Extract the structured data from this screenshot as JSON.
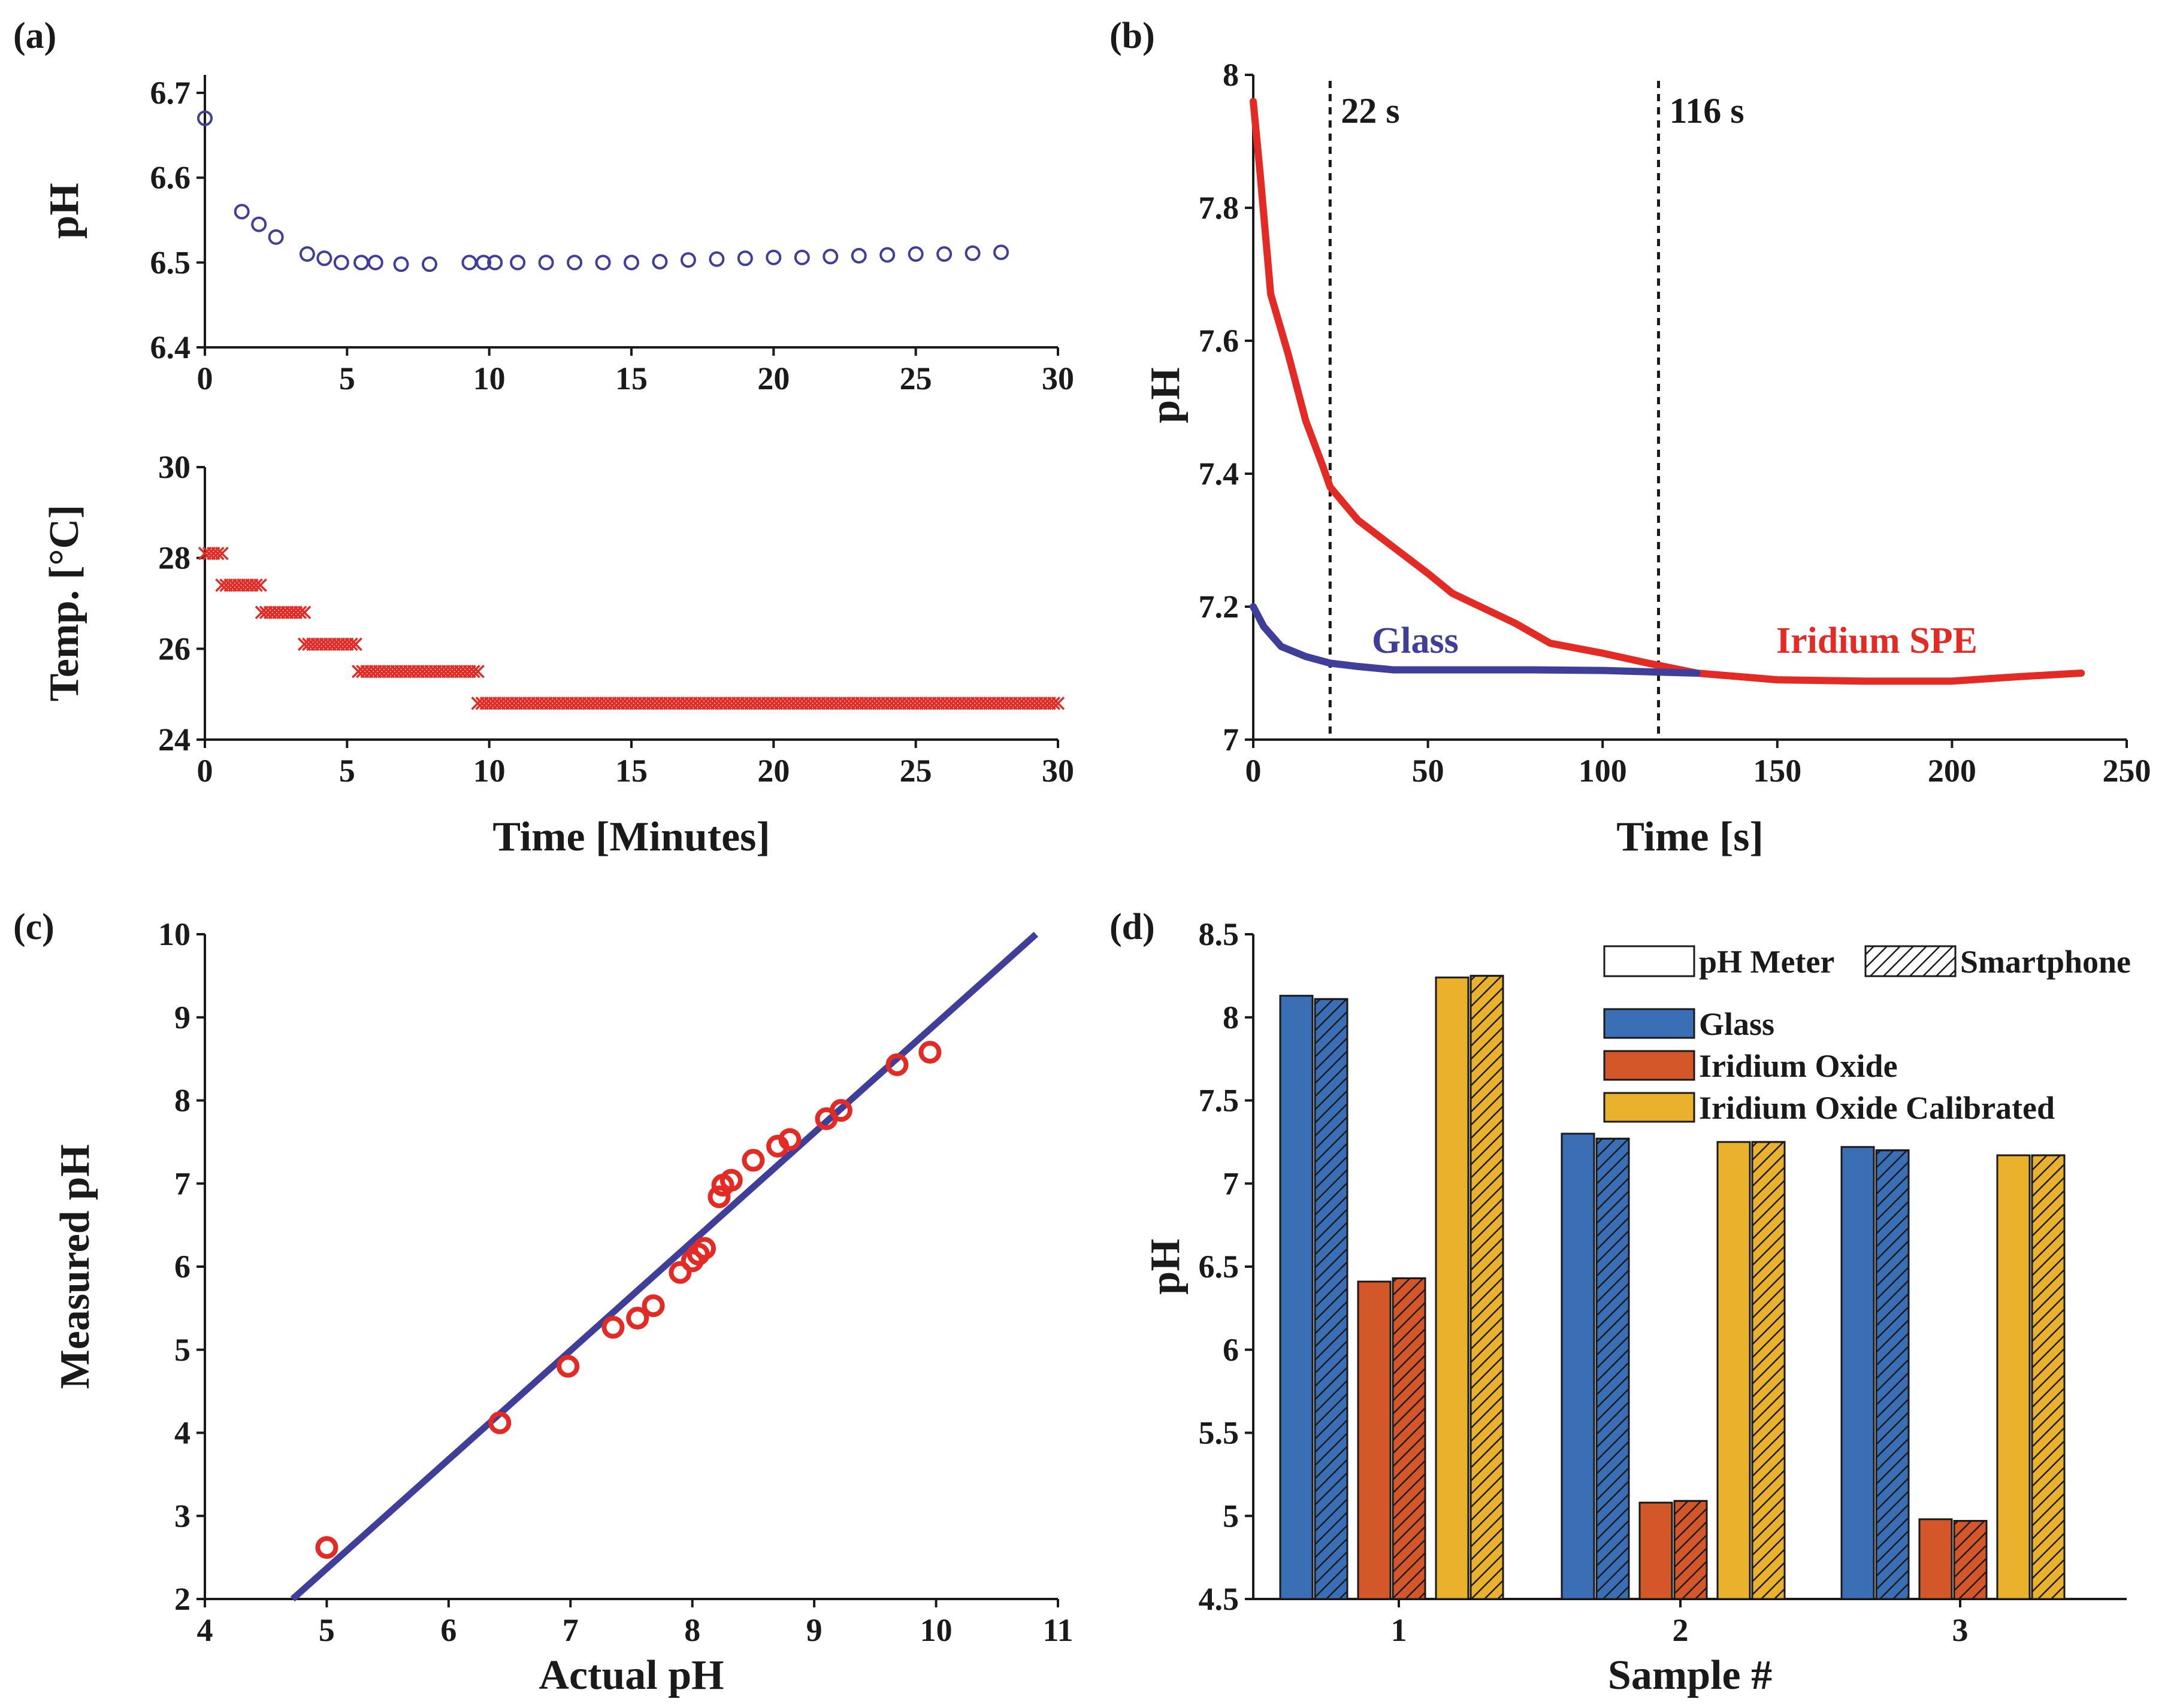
{
  "figure": {
    "panels": [
      {
        "id": "a",
        "label": "(a)",
        "subplots": [
          {
            "ylabel": "pH",
            "xlabel": "",
            "xlim": [
              0,
              30
            ],
            "ylim": [
              6.4,
              6.7
            ],
            "xticks": [
              "0",
              "5",
              "10",
              "15",
              "20",
              "25",
              "30"
            ],
            "yticks": [
              "6.4",
              "6.5",
              "6.6",
              "6.7"
            ]
          },
          {
            "ylabel": "Temp. [°C]",
            "xlabel": "Time [Minutes]",
            "xlim": [
              0,
              30
            ],
            "ylim": [
              24,
              30
            ],
            "xticks": [
              "0",
              "5",
              "10",
              "15",
              "20",
              "25",
              "30"
            ],
            "yticks": [
              "24",
              "26",
              "28",
              "30"
            ]
          }
        ]
      },
      {
        "id": "b",
        "label": "(b)",
        "ylabel": "pH",
        "xlabel": "Time [s]",
        "xticks": [
          "0",
          "50",
          "100",
          "150",
          "200",
          "250"
        ],
        "yticks": [
          "7",
          "7.2",
          "7.4",
          "7.6",
          "7.8",
          "8"
        ],
        "annotations": [
          "22 s",
          "116 s"
        ],
        "series_labels": [
          "Glass",
          "Iridium SPE"
        ]
      },
      {
        "id": "c",
        "label": "(c)",
        "ylabel": "Measured pH",
        "xlabel": "Actual pH",
        "xticks": [
          "4",
          "5",
          "6",
          "7",
          "8",
          "9",
          "10",
          "11"
        ],
        "yticks": [
          "2",
          "3",
          "4",
          "5",
          "6",
          "7",
          "8",
          "9",
          "10"
        ]
      },
      {
        "id": "d",
        "label": "(d)",
        "ylabel": "pH",
        "xlabel": "Sample #",
        "xticks": [
          "1",
          "2",
          "3"
        ],
        "yticks": [
          "4.5",
          "5",
          "5.5",
          "6",
          "6.5",
          "7",
          "7.5",
          "8",
          "8.5"
        ],
        "legend_method": [
          "pH Meter",
          "Smartphone"
        ],
        "legend_series": [
          "Glass",
          "Iridium Oxide",
          "Iridium Oxide Calibrated"
        ]
      }
    ]
  },
  "colors": {
    "blue": "#3a6fb5",
    "navy": "#3f3f9a",
    "red": "#e42a24",
    "orange": "#d4572a",
    "gold": "#e9b12c"
  },
  "chart_data": [
    {
      "panel": "a-top",
      "type": "scatter",
      "title": "",
      "xlabel": "",
      "ylabel": "pH",
      "xlim": [
        0,
        30
      ],
      "ylim": [
        6.4,
        6.7
      ],
      "marker": "circle",
      "x": [
        0,
        1.3,
        1.9,
        2.5,
        3.6,
        4.2,
        4.8,
        5.5,
        6.0,
        6.9,
        7.9,
        9.3,
        9.8,
        10.2,
        11.0,
        12.0,
        13.0,
        14.0,
        15.0,
        16.0,
        17.0,
        18.0,
        19.0,
        20.0,
        21.0,
        22.0,
        23.0,
        24.0,
        25.0,
        26.0,
        27.0,
        28.0
      ],
      "y": [
        6.67,
        6.56,
        6.545,
        6.53,
        6.51,
        6.505,
        6.5,
        6.5,
        6.5,
        6.498,
        6.498,
        6.5,
        6.5,
        6.5,
        6.5,
        6.5,
        6.5,
        6.5,
        6.5,
        6.501,
        6.503,
        6.504,
        6.505,
        6.506,
        6.506,
        6.507,
        6.508,
        6.509,
        6.51,
        6.51,
        6.511,
        6.512
      ]
    },
    {
      "panel": "a-bottom",
      "type": "scatter",
      "title": "",
      "xlabel": "Time [Minutes]",
      "ylabel": "Temp. [°C]",
      "xlim": [
        0,
        30
      ],
      "ylim": [
        24,
        30
      ],
      "marker": "x",
      "segments": [
        {
          "x_start": 0.0,
          "x_end": 0.6,
          "y": 28.1
        },
        {
          "x_start": 0.6,
          "x_end": 2.0,
          "y": 27.4
        },
        {
          "x_start": 2.0,
          "x_end": 3.5,
          "y": 26.8
        },
        {
          "x_start": 3.5,
          "x_end": 5.4,
          "y": 26.1
        },
        {
          "x_start": 5.4,
          "x_end": 9.6,
          "y": 25.5
        },
        {
          "x_start": 9.6,
          "x_end": 30.0,
          "y": 24.8
        }
      ],
      "sample_interval_minutes": 0.15
    },
    {
      "panel": "b",
      "type": "line",
      "title": "",
      "xlabel": "Time [s]",
      "ylabel": "pH",
      "xlim": [
        0,
        250
      ],
      "ylim": [
        7,
        8
      ],
      "vlines": [
        {
          "x": 22,
          "label": "22 s"
        },
        {
          "x": 116,
          "label": "116 s"
        }
      ],
      "series": [
        {
          "name": "Glass",
          "color": "#3f3f9a",
          "x": [
            0,
            3,
            8,
            15,
            22,
            30,
            40,
            60,
            80,
            100,
            113,
            127
          ],
          "y": [
            7.2,
            7.17,
            7.14,
            7.125,
            7.115,
            7.11,
            7.105,
            7.105,
            7.105,
            7.104,
            7.102,
            7.1
          ]
        },
        {
          "name": "Iridium SPE",
          "color": "#e42a24",
          "x": [
            0,
            2,
            5,
            10,
            15,
            20,
            22,
            30,
            40,
            50,
            57,
            65,
            75,
            85,
            100,
            113,
            127,
            150,
            175,
            200,
            220,
            237
          ],
          "y": [
            7.96,
            7.85,
            7.67,
            7.58,
            7.48,
            7.41,
            7.38,
            7.33,
            7.29,
            7.25,
            7.22,
            7.2,
            7.175,
            7.145,
            7.13,
            7.115,
            7.1,
            7.09,
            7.088,
            7.088,
            7.095,
            7.1
          ]
        }
      ]
    },
    {
      "panel": "c",
      "type": "scatter",
      "title": "",
      "xlabel": "Actual pH",
      "ylabel": "Measured pH",
      "xlim": [
        4,
        11
      ],
      "ylim": [
        2,
        10
      ],
      "points": {
        "x": [
          5.0,
          6.42,
          6.98,
          7.35,
          7.55,
          7.68,
          7.9,
          8.0,
          8.05,
          8.1,
          8.22,
          8.25,
          8.32,
          8.5,
          8.7,
          8.8,
          9.1,
          9.22,
          9.68,
          9.95
        ],
        "y": [
          2.62,
          4.12,
          4.8,
          5.27,
          5.38,
          5.53,
          5.93,
          6.07,
          6.15,
          6.22,
          6.84,
          6.98,
          7.04,
          7.28,
          7.45,
          7.53,
          7.78,
          7.88,
          8.43,
          8.58
        ]
      },
      "fit_line": {
        "x": [
          4.72,
          10.82
        ],
        "y": [
          2.0,
          10.0
        ]
      }
    },
    {
      "panel": "d",
      "type": "bar",
      "title": "",
      "xlabel": "Sample #",
      "ylabel": "pH",
      "ylim": [
        4.5,
        8.5
      ],
      "categories": [
        "1",
        "2",
        "3"
      ],
      "series": [
        {
          "name": "Glass",
          "method": "pH Meter",
          "values": [
            8.13,
            7.3,
            7.22
          ]
        },
        {
          "name": "Glass",
          "method": "Smartphone",
          "values": [
            8.11,
            7.27,
            7.2
          ]
        },
        {
          "name": "Iridium Oxide",
          "method": "pH Meter",
          "values": [
            6.41,
            5.08,
            4.98
          ]
        },
        {
          "name": "Iridium Oxide",
          "method": "Smartphone",
          "values": [
            6.43,
            5.09,
            4.97
          ]
        },
        {
          "name": "Iridium Oxide Calibrated",
          "method": "pH Meter",
          "values": [
            8.24,
            7.25,
            7.17
          ]
        },
        {
          "name": "Iridium Oxide Calibrated",
          "method": "Smartphone",
          "values": [
            8.25,
            7.25,
            7.17
          ]
        }
      ]
    }
  ]
}
